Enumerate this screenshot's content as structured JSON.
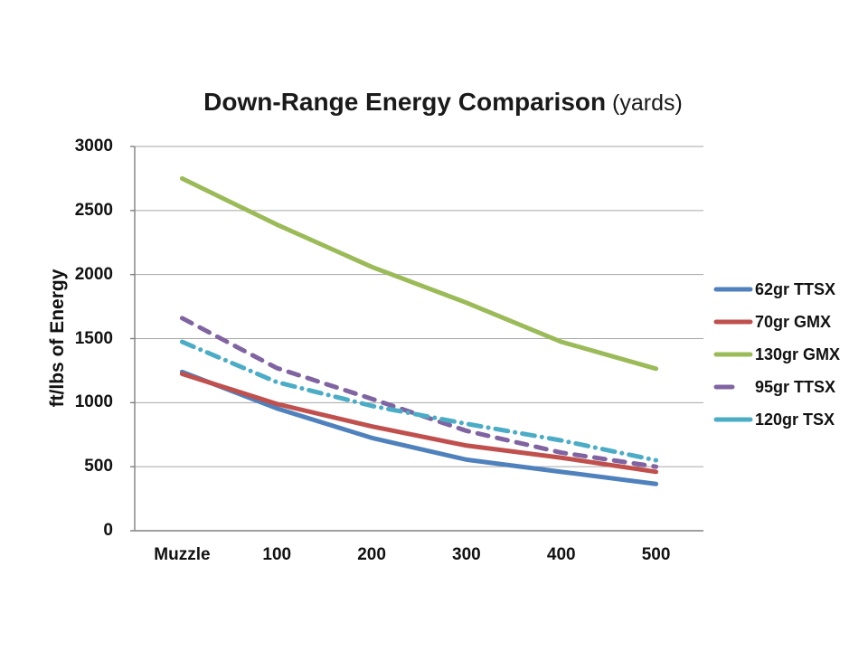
{
  "chart_data": {
    "type": "line",
    "title": "Down-Range Energy Comparison (yards)",
    "title_main": "Down-Range Energy Comparison",
    "title_suffix": " (yards)",
    "xlabel": "",
    "ylabel": "ft/lbs of Energy",
    "x_unit": "yards",
    "categories": [
      "Muzzle",
      "100",
      "200",
      "300",
      "400",
      "500"
    ],
    "ylim": [
      0,
      3000
    ],
    "ytick_step": 500,
    "yticklabels": [
      "3000",
      "2500",
      "2000",
      "1500",
      "1000",
      "500",
      "0"
    ],
    "grid": "horizontal",
    "grid_color": "#a6a6a6",
    "axis_color": "#808080",
    "legend_position": "right",
    "background_color": "#ffffff",
    "series": [
      {
        "name": "62gr TTSX",
        "color": "#4F81BD",
        "style": "solid",
        "values": [
          1240,
          955,
          725,
          555,
          460,
          365
        ]
      },
      {
        "name": "70gr GMX",
        "color": "#C0504D",
        "style": "solid",
        "values": [
          1225,
          990,
          815,
          665,
          570,
          460
        ]
      },
      {
        "name": "130gr GMX",
        "color": "#9BBB59",
        "style": "solid",
        "values": [
          2750,
          2390,
          2060,
          1780,
          1475,
          1265
        ]
      },
      {
        "name": "95gr TTSX",
        "color": "#8064A2",
        "style": "dashed",
        "values": [
          1660,
          1270,
          1030,
          780,
          610,
          500
        ]
      },
      {
        "name": "120gr TSX",
        "color": "#4BACC6",
        "style": "dash-dot",
        "values": [
          1475,
          1160,
          975,
          835,
          705,
          550
        ]
      }
    ]
  }
}
